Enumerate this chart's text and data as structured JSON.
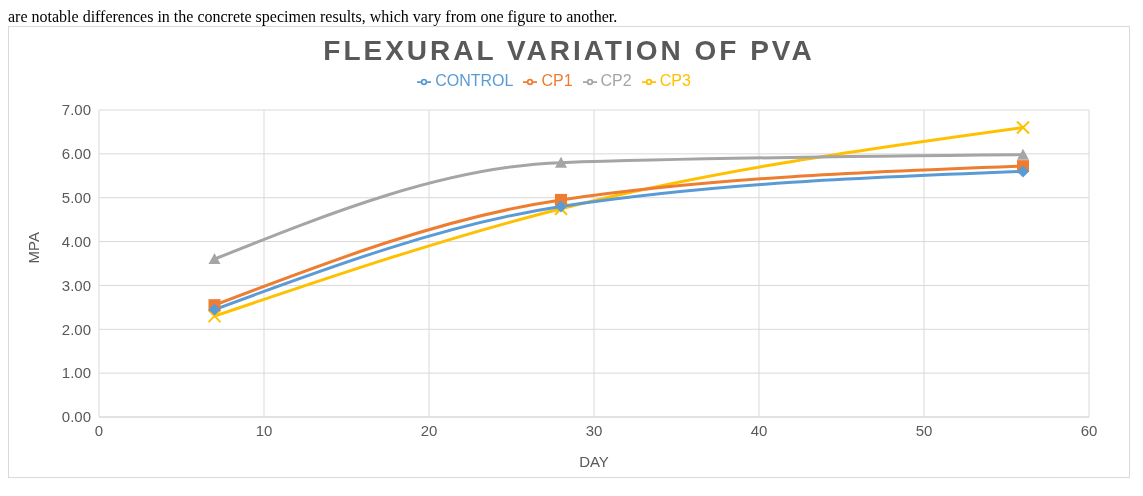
{
  "chart_data": {
    "type": "line",
    "title": "FLEXURAL VARIATION OF PVA",
    "xlabel": "DAY",
    "ylabel": "MPA",
    "annotations": [
      "are notable differences in the concrete specimen results, which vary from one figure to another."
    ],
    "x": [
      7,
      28,
      56
    ],
    "series": [
      {
        "name": "CONTROL",
        "color": "#5b9bd5",
        "marker": "diamond",
        "values": [
          2.45,
          4.8,
          5.6
        ]
      },
      {
        "name": "CP1",
        "color": "#ed7d31",
        "marker": "square",
        "values": [
          2.55,
          4.95,
          5.72
        ]
      },
      {
        "name": "CP2",
        "color": "#a5a5a5",
        "marker": "triangle",
        "values": [
          3.6,
          5.8,
          5.98
        ]
      },
      {
        "name": "CP3",
        "color": "#ffc000",
        "marker": "cross",
        "values": [
          2.3,
          4.75,
          6.6
        ]
      }
    ],
    "xlim": [
      0,
      60
    ],
    "xticks": [
      0,
      10,
      20,
      30,
      40,
      50,
      60
    ],
    "ylim": [
      0,
      7
    ],
    "yticks": [
      {
        "value": 0,
        "label": "0.00"
      },
      {
        "value": 1,
        "label": "1.00"
      },
      {
        "value": 2,
        "label": "2.00"
      },
      {
        "value": 3,
        "label": "3.00"
      },
      {
        "value": 4,
        "label": "4.00"
      },
      {
        "value": 5,
        "label": "5.00"
      },
      {
        "value": 6,
        "label": "6.00"
      },
      {
        "value": 7,
        "label": "7.00"
      }
    ],
    "grid": true,
    "legend": "top",
    "line_style": "solid"
  }
}
